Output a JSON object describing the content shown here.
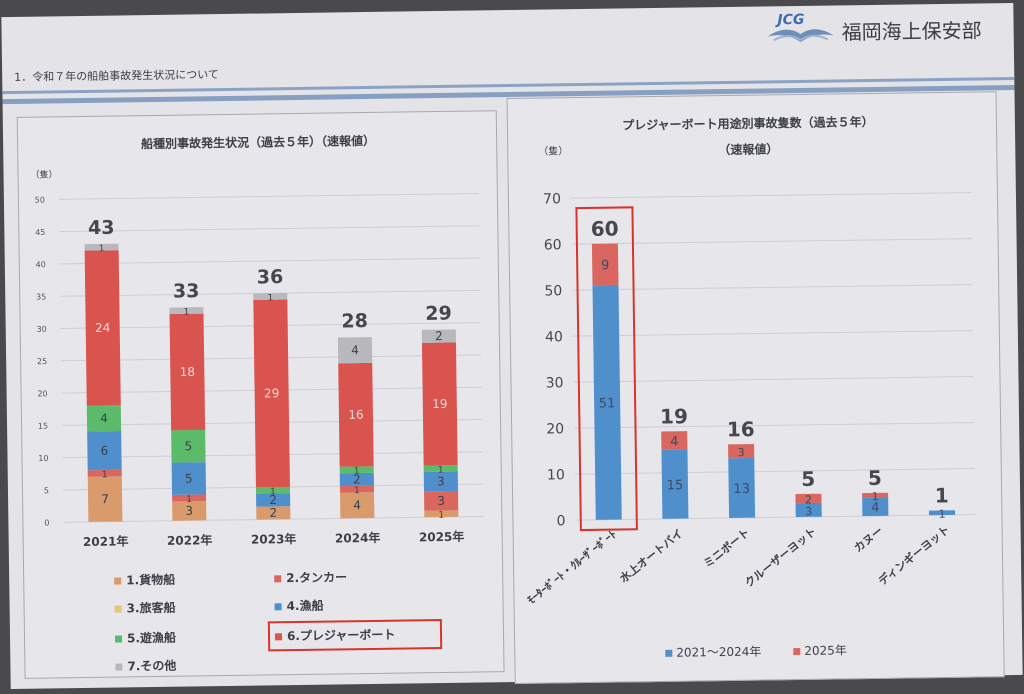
{
  "header": {
    "section_title": "1．令和７年の船舶事故発生状況について",
    "logo_text": "JCG",
    "org_name": "福岡海上保安部"
  },
  "chart_data": [
    {
      "type": "bar",
      "stacked": true,
      "title": "船種別事故発生状況（過去５年）（速報値）",
      "ylabel": "（隻）",
      "ylim": [
        0,
        50
      ],
      "yticks": [
        0,
        5,
        10,
        15,
        20,
        25,
        30,
        35,
        40,
        45,
        50
      ],
      "categories": [
        "2021年",
        "2022年",
        "2023年",
        "2024年",
        "2025年"
      ],
      "totals": [
        43,
        33,
        36,
        28,
        29
      ],
      "series": [
        {
          "name": "1.貨物船",
          "color": "#d99a6c",
          "values": [
            7,
            3,
            2,
            4,
            1
          ]
        },
        {
          "name": "2.タンカー",
          "color": "#d9675f",
          "values": [
            1,
            1,
            0,
            1,
            3
          ]
        },
        {
          "name": "3.旅客船",
          "color": "#e8c37a",
          "values": [
            0,
            0,
            0,
            0,
            0
          ]
        },
        {
          "name": "4.漁船",
          "color": "#4f8fcc",
          "values": [
            6,
            5,
            2,
            2,
            3
          ]
        },
        {
          "name": "5.遊漁船",
          "color": "#5cbb6a",
          "values": [
            4,
            5,
            1,
            1,
            1
          ]
        },
        {
          "name": "6.プレジャーボート",
          "color": "#d9534f",
          "values": [
            24,
            18,
            29,
            16,
            19
          ]
        },
        {
          "name": "7.その他",
          "color": "#b9b8bc",
          "values": [
            1,
            1,
            1,
            4,
            2
          ]
        }
      ],
      "legend_placement": "bottom",
      "highlight_legend": "6.プレジャーボート",
      "grid": true
    },
    {
      "type": "bar",
      "stacked": true,
      "title": "プレジャーボート用途別事故隻数（過去５年）",
      "subtitle": "（速報値）",
      "ylabel": "（隻）",
      "ylim": [
        0,
        70
      ],
      "yticks": [
        0,
        10,
        20,
        30,
        40,
        50,
        60,
        70
      ],
      "categories": [
        "ﾓｰﾀｰﾎﾞｰﾄ・ｸﾙｰｻﾞｰﾎﾞｰﾄ",
        "水上オートバイ",
        "ミニボート",
        "クルーザーヨット",
        "カヌー",
        "ディンギーヨット"
      ],
      "totals": [
        60,
        19,
        16,
        5,
        5,
        1
      ],
      "series": [
        {
          "name": "2021～2024年",
          "color": "#4f8fcc",
          "values": [
            51,
            15,
            13,
            3,
            4,
            1
          ]
        },
        {
          "name": "2025年",
          "color": "#d9675f",
          "values": [
            9,
            4,
            3,
            2,
            1,
            0
          ]
        }
      ],
      "legend_placement": "bottom",
      "highlight_category": "ﾓｰﾀｰﾎﾞｰﾄ・ｸﾙｰｻﾞｰﾎﾞｰﾄ",
      "grid": true
    }
  ]
}
